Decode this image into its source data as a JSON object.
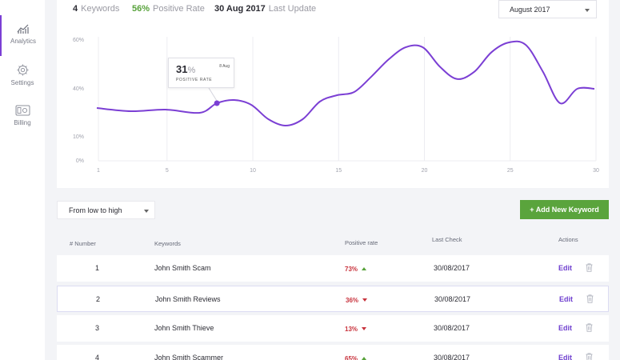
{
  "sidebar": {
    "items": [
      {
        "label": "Analytics",
        "icon": "chart-icon",
        "active": true
      },
      {
        "label": "Settings",
        "icon": "gear-icon",
        "active": false
      },
      {
        "label": "Billing",
        "icon": "billing-icon",
        "active": false
      }
    ]
  },
  "stats": {
    "keywords_value": "4",
    "keywords_label": "Keywords",
    "positive_value": "56%",
    "positive_label": "Positive Rate",
    "update_value": "30 Aug 2017",
    "update_label": "Last Update"
  },
  "month_select": {
    "value": "August 2017"
  },
  "tooltip": {
    "value": "31",
    "unit": "%",
    "date": "8 Aug",
    "label": "Positive rate"
  },
  "chart_data": {
    "type": "line",
    "yticks": [
      "60%",
      "40%",
      "10%",
      "0%"
    ],
    "xticks": [
      "1",
      "5",
      "10",
      "15",
      "20",
      "25",
      "30"
    ],
    "x": [
      1,
      3,
      5,
      7,
      8,
      9,
      10,
      11,
      12,
      13,
      14,
      15,
      16,
      17,
      18,
      19,
      20,
      21,
      22,
      23,
      24,
      25,
      26,
      27,
      28,
      29,
      30
    ],
    "values": [
      28,
      26,
      27,
      25,
      31,
      33,
      30,
      21,
      17,
      21,
      32,
      36,
      38,
      45,
      52,
      57,
      57,
      49,
      44,
      47,
      55,
      59,
      58,
      47,
      31,
      40,
      40
    ],
    "highlight_index": 4,
    "colors": {
      "line": "#7b3fd4",
      "grid": "#ececf1"
    }
  },
  "toolbar": {
    "sort_value": "From low to high",
    "add_label": "+ Add New Keyword"
  },
  "table": {
    "headers": {
      "number": "# Number",
      "keywords": "Keywords",
      "rate": "Positive rate",
      "last_check": "Last Check",
      "actions": "Actions"
    },
    "edit_label": "Edit",
    "rows": [
      {
        "number": "1",
        "keyword": "John Smith Scam",
        "rate": "73%",
        "trend": "up",
        "last_check": "30/08/2017"
      },
      {
        "number": "2",
        "keyword": "John Smith Reviews",
        "rate": "36%",
        "trend": "down",
        "last_check": "30/08/2017"
      },
      {
        "number": "3",
        "keyword": "John Smith Thieve",
        "rate": "13%",
        "trend": "down",
        "last_check": "30/08/2017"
      },
      {
        "number": "4",
        "keyword": "John Smith Scammer",
        "rate": "65%",
        "trend": "up",
        "last_check": "30/08/2017"
      }
    ]
  }
}
